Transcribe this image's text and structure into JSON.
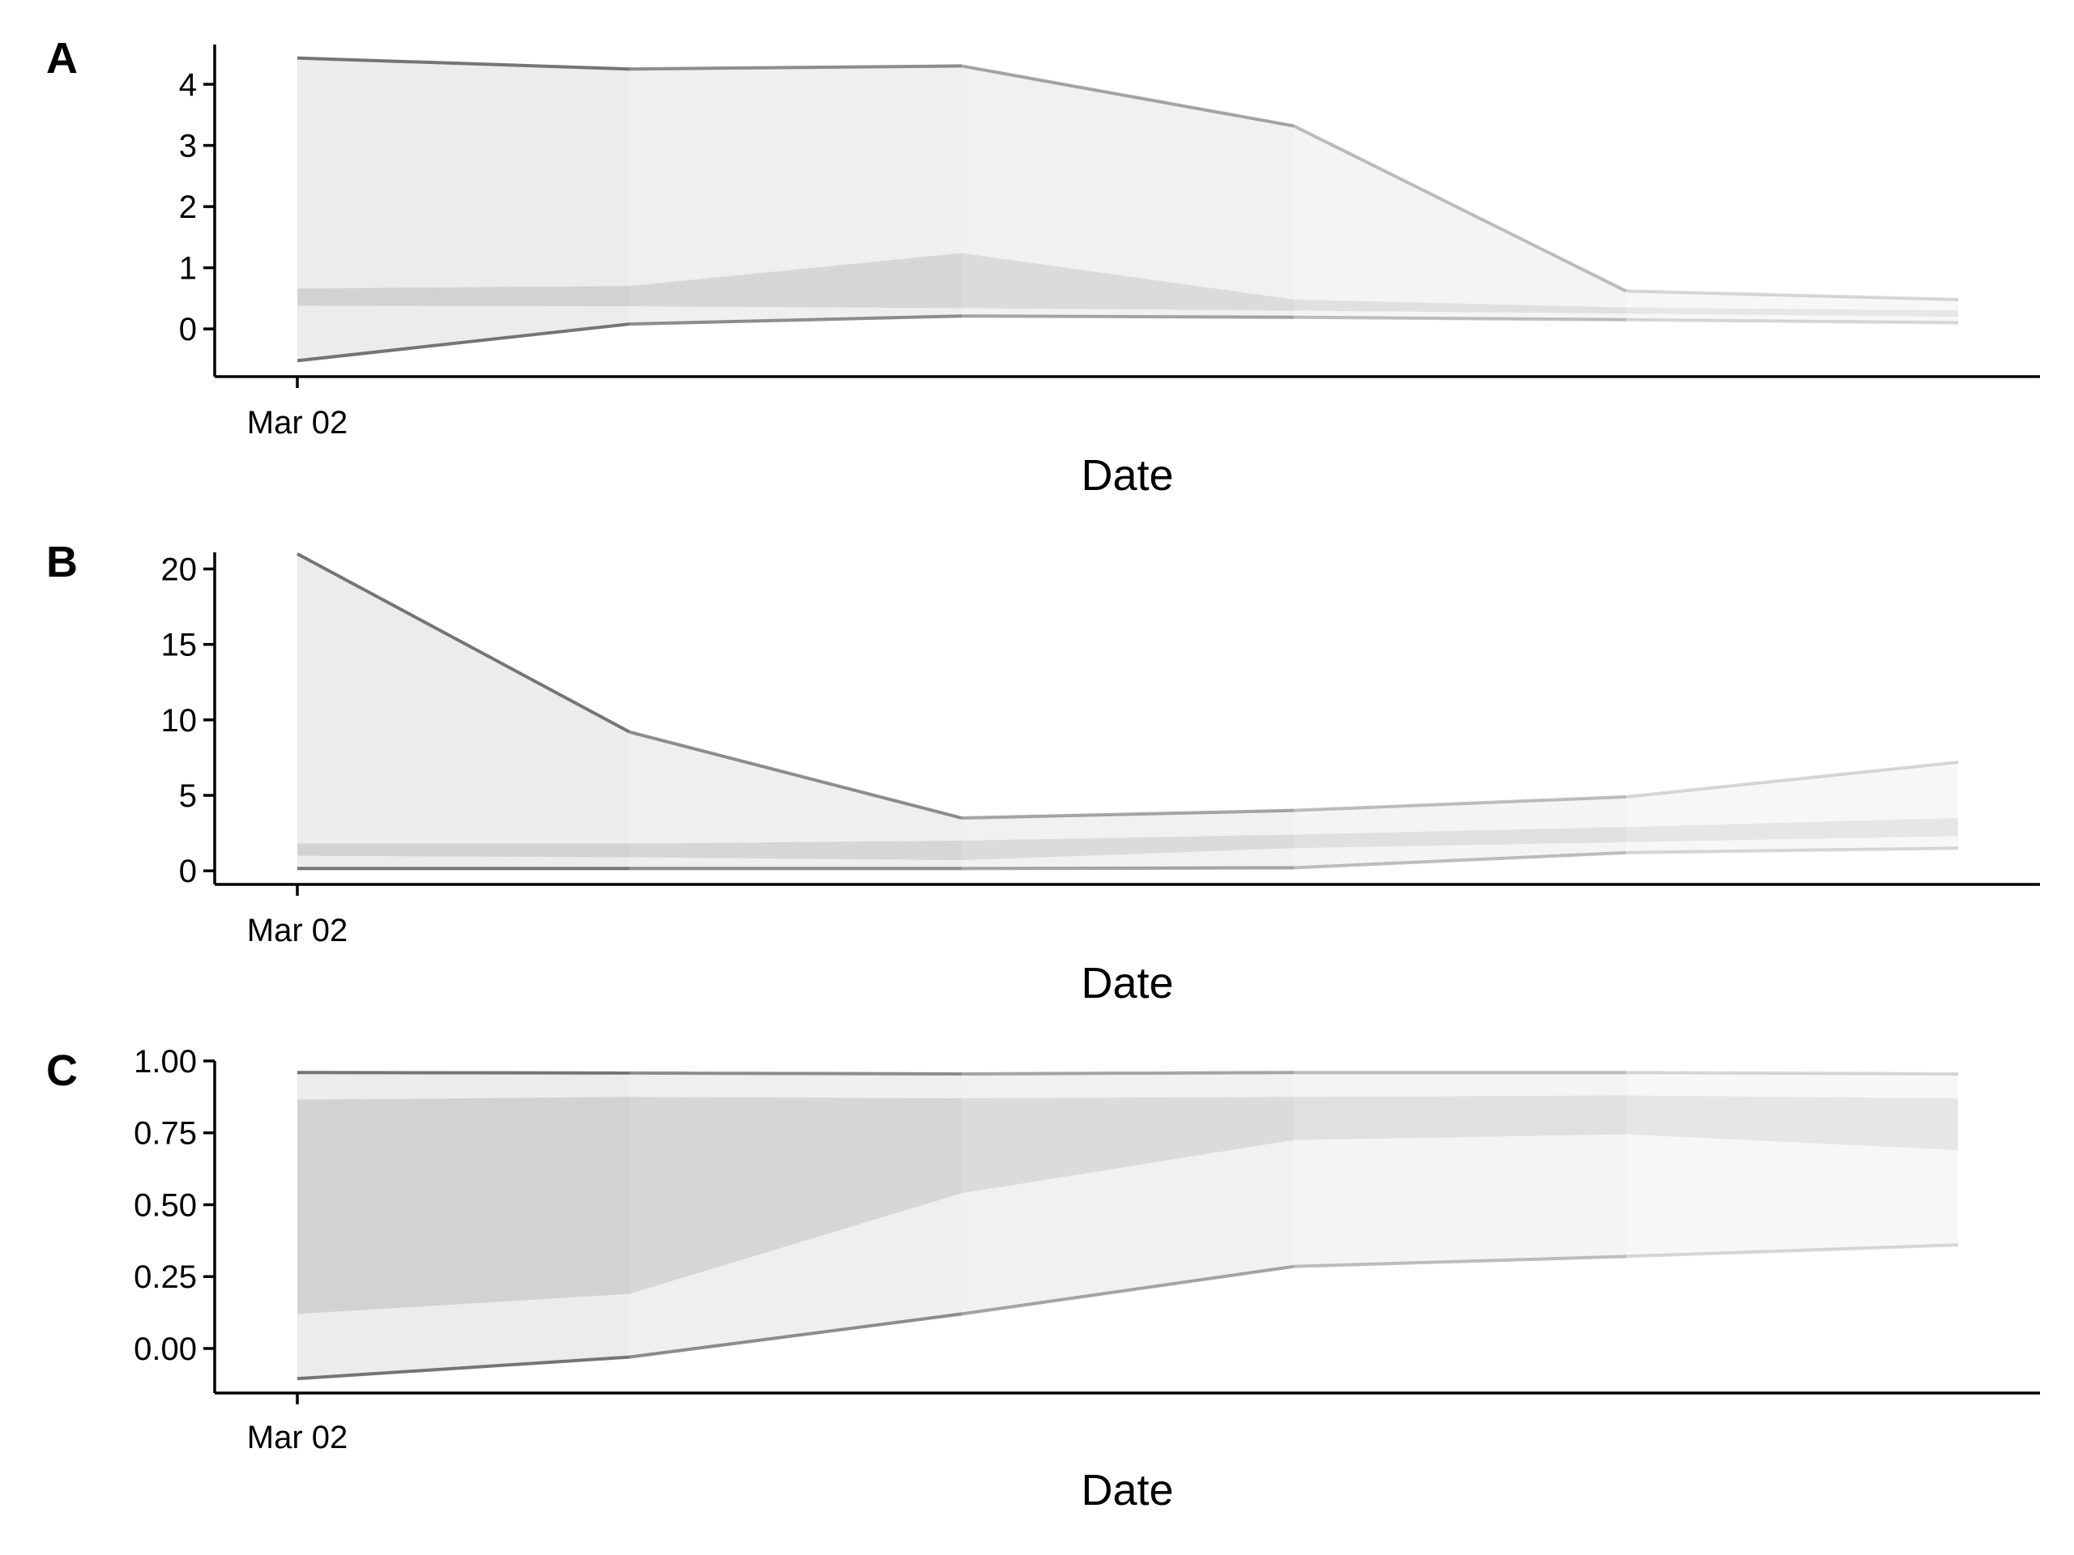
{
  "figure": {
    "background": "#ffffff",
    "band_shades": [
      "#d2d2d2",
      "#ececec"
    ],
    "line_color": "#6e6e6e"
  },
  "chart_data": [
    {
      "type": "area",
      "tag": "A",
      "xlabel": "Date",
      "x_tick_labels": [
        "Mar 02"
      ],
      "y_tick_labels": [
        "0",
        "1",
        "2",
        "3",
        "4"
      ],
      "y_ticks": [
        0,
        1,
        2,
        3,
        4
      ],
      "ylim": [
        -0.78,
        4.65
      ],
      "x_points": 6,
      "series": [
        {
          "role": "outer_band_upper",
          "values": [
            4.43,
            4.25,
            4.3,
            3.32,
            0.62,
            0.48
          ]
        },
        {
          "role": "outer_band_lower",
          "values": [
            -0.52,
            0.08,
            0.21,
            0.19,
            0.15,
            0.1
          ]
        },
        {
          "role": "inner_band_upper",
          "values": [
            0.66,
            0.7,
            1.24,
            0.48,
            0.35,
            0.3
          ]
        },
        {
          "role": "inner_band_lower",
          "values": [
            0.38,
            0.37,
            0.34,
            0.3,
            0.25,
            0.2
          ]
        }
      ]
    },
    {
      "type": "area",
      "tag": "B",
      "xlabel": "Date",
      "x_tick_labels": [
        "Mar 02"
      ],
      "y_tick_labels": [
        "0",
        "5",
        "10",
        "15",
        "20"
      ],
      "y_ticks": [
        0,
        5,
        10,
        15,
        20
      ],
      "ylim": [
        -0.9,
        21.1
      ],
      "x_points": 6,
      "series": [
        {
          "role": "outer_band_upper",
          "values": [
            21.0,
            9.2,
            3.5,
            4.0,
            4.9,
            7.2
          ]
        },
        {
          "role": "outer_band_lower",
          "values": [
            0.15,
            0.15,
            0.15,
            0.2,
            1.2,
            1.5
          ]
        },
        {
          "role": "inner_band_upper",
          "values": [
            1.8,
            1.8,
            2.0,
            2.4,
            2.9,
            3.5
          ]
        },
        {
          "role": "inner_band_lower",
          "values": [
            1.0,
            0.9,
            0.7,
            1.5,
            1.9,
            2.3
          ]
        }
      ]
    },
    {
      "type": "area",
      "tag": "C",
      "xlabel": "Date",
      "x_tick_labels": [
        "Mar 02"
      ],
      "y_tick_labels": [
        "0.00",
        "0.25",
        "0.50",
        "0.75",
        "1.00"
      ],
      "y_ticks": [
        0,
        0.25,
        0.5,
        0.75,
        1.0
      ],
      "ylim": [
        -0.155,
        1.0
      ],
      "x_points": 6,
      "series": [
        {
          "role": "outer_band_upper",
          "values": [
            0.96,
            0.958,
            0.955,
            0.96,
            0.96,
            0.955
          ]
        },
        {
          "role": "outer_band_lower",
          "values": [
            -0.105,
            -0.03,
            0.12,
            0.285,
            0.32,
            0.36
          ]
        },
        {
          "role": "inner_band_upper",
          "values": [
            0.865,
            0.875,
            0.87,
            0.875,
            0.88,
            0.87
          ]
        },
        {
          "role": "inner_band_lower",
          "values": [
            0.12,
            0.19,
            0.54,
            0.725,
            0.745,
            0.69
          ]
        }
      ]
    }
  ]
}
